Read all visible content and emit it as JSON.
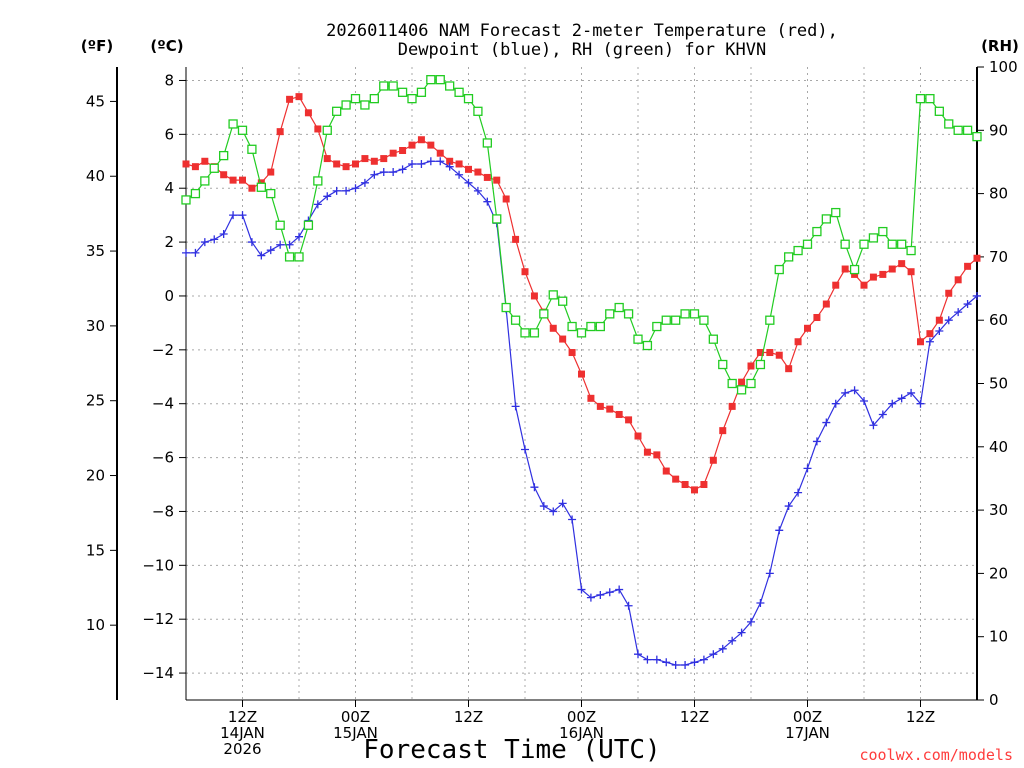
{
  "chart_data": {
    "type": "line",
    "title_lines": [
      "2026011406 NAM Forecast 2-meter Temperature (red),",
      "Dewpoint (blue), RH (green) for KHVN"
    ],
    "xlabel": "Forecast Time (UTC)",
    "credit": "coolwx.com/models",
    "units": {
      "fahrenheit": "(ºF)",
      "celsius": "(ºC)",
      "rh": "(RH)"
    },
    "x_unit": "forecast hours since 2026-01-14 06Z",
    "xlim": [
      0,
      84
    ],
    "celsius_axis": {
      "ylim": [
        -15,
        8.5
      ],
      "ticks": [
        8,
        6,
        4,
        2,
        0,
        -2,
        -4,
        -6,
        -8,
        -10,
        -12,
        -14
      ]
    },
    "fahrenheit_axis": {
      "ylim": [
        5,
        47.3
      ],
      "ticks": [
        45,
        40,
        35,
        30,
        25,
        20,
        15,
        10
      ]
    },
    "rh_axis": {
      "ylim": [
        0,
        100
      ],
      "ticks": [
        100,
        90,
        80,
        70,
        60,
        50,
        40,
        30,
        20,
        10,
        0
      ]
    },
    "x_ticks": [
      {
        "x": 6,
        "lines": [
          "12Z",
          "14JAN",
          "2026"
        ]
      },
      {
        "x": 18,
        "lines": [
          "00Z",
          "15JAN"
        ]
      },
      {
        "x": 30,
        "lines": [
          "12Z"
        ]
      },
      {
        "x": 42,
        "lines": [
          "00Z",
          "16JAN"
        ]
      },
      {
        "x": 54,
        "lines": [
          "12Z"
        ]
      },
      {
        "x": 66,
        "lines": [
          "00Z",
          "17JAN"
        ]
      },
      {
        "x": 78,
        "lines": [
          "12Z"
        ]
      }
    ],
    "x_grid": [
      0,
      6,
      12,
      18,
      24,
      30,
      36,
      42,
      48,
      54,
      60,
      66,
      72,
      78,
      84
    ],
    "series": [
      {
        "name": "Temperature",
        "axis": "celsius",
        "color": "#ee3030",
        "marker": "filled-square",
        "x": [
          0,
          1,
          2,
          3,
          4,
          5,
          6,
          7,
          8,
          9,
          10,
          11,
          12,
          13,
          14,
          15,
          16,
          17,
          18,
          19,
          20,
          21,
          22,
          23,
          24,
          25,
          26,
          27,
          28,
          29,
          30,
          31,
          32,
          33,
          34,
          35,
          36,
          37,
          38,
          39,
          40,
          41,
          42,
          43,
          44,
          45,
          46,
          47,
          48,
          49,
          50,
          51,
          52,
          53,
          54,
          55,
          56,
          57,
          58,
          59,
          60,
          61,
          62,
          63,
          64,
          65,
          66,
          67,
          68,
          69,
          70,
          71,
          72,
          73,
          74,
          75,
          76,
          77,
          78,
          79,
          80,
          81,
          82,
          83,
          84
        ],
        "values": [
          4.9,
          4.8,
          5.0,
          4.8,
          4.5,
          4.3,
          4.3,
          4.0,
          4.2,
          4.6,
          6.1,
          7.3,
          7.4,
          6.8,
          6.2,
          5.1,
          4.9,
          4.8,
          4.9,
          5.1,
          5.0,
          5.1,
          5.3,
          5.4,
          5.6,
          5.8,
          5.6,
          5.3,
          5.0,
          4.9,
          4.7,
          4.6,
          4.4,
          4.3,
          3.6,
          2.1,
          0.9,
          0.0,
          -0.6,
          -1.2,
          -1.6,
          -2.1,
          -2.9,
          -3.8,
          -4.1,
          -4.2,
          -4.4,
          -4.6,
          -5.2,
          -5.8,
          -5.9,
          -6.5,
          -6.8,
          -7.0,
          -7.2,
          -7.0,
          -6.1,
          -5.0,
          -4.1,
          -3.2,
          -2.6,
          -2.1,
          -2.1,
          -2.2,
          -2.7,
          -1.7,
          -1.2,
          -0.8,
          -0.3,
          0.4,
          1.0,
          0.8,
          0.4,
          0.7,
          0.8,
          1.0,
          1.2,
          0.9,
          -1.7,
          -1.4,
          -0.9,
          0.1,
          0.6,
          1.1,
          1.4
        ]
      },
      {
        "name": "Dewpoint",
        "axis": "celsius",
        "color": "#3030e0",
        "marker": "plus",
        "x": [
          0,
          1,
          2,
          3,
          4,
          5,
          6,
          7,
          8,
          9,
          10,
          11,
          12,
          13,
          14,
          15,
          16,
          17,
          18,
          19,
          20,
          21,
          22,
          23,
          24,
          25,
          26,
          27,
          28,
          29,
          30,
          31,
          32,
          33,
          34,
          35,
          36,
          37,
          38,
          39,
          40,
          41,
          42,
          43,
          44,
          45,
          46,
          47,
          48,
          49,
          50,
          51,
          52,
          53,
          54,
          55,
          56,
          57,
          58,
          59,
          60,
          61,
          62,
          63,
          64,
          65,
          66,
          67,
          68,
          69,
          70,
          71,
          72,
          73,
          74,
          75,
          76,
          77,
          78,
          79,
          80,
          81,
          82,
          83,
          84
        ],
        "values": [
          1.6,
          1.6,
          2.0,
          2.1,
          2.3,
          3.0,
          3.0,
          2.0,
          1.5,
          1.7,
          1.9,
          1.9,
          2.2,
          2.8,
          3.4,
          3.7,
          3.9,
          3.9,
          4.0,
          4.2,
          4.5,
          4.6,
          4.6,
          4.7,
          4.9,
          4.9,
          5.0,
          5.0,
          4.8,
          4.5,
          4.2,
          3.9,
          3.5,
          2.7,
          -0.5,
          -4.1,
          -5.7,
          -7.1,
          -7.8,
          -8.0,
          -7.7,
          -8.3,
          -10.9,
          -11.2,
          -11.1,
          -11.0,
          -10.9,
          -11.5,
          -13.3,
          -13.5,
          -13.5,
          -13.6,
          -13.7,
          -13.7,
          -13.6,
          -13.5,
          -13.3,
          -13.1,
          -12.8,
          -12.5,
          -12.1,
          -11.4,
          -10.3,
          -8.7,
          -7.8,
          -7.3,
          -6.4,
          -5.4,
          -4.7,
          -4.0,
          -3.6,
          -3.5,
          -3.9,
          -4.8,
          -4.4,
          -4.0,
          -3.8,
          -3.6,
          -4.0,
          -1.7,
          -1.3,
          -0.9,
          -0.6,
          -0.3,
          0.0
        ]
      },
      {
        "name": "Relative Humidity",
        "axis": "rh",
        "color": "#22cc22",
        "marker": "open-square",
        "x": [
          0,
          1,
          2,
          3,
          4,
          5,
          6,
          7,
          8,
          9,
          10,
          11,
          12,
          13,
          14,
          15,
          16,
          17,
          18,
          19,
          20,
          21,
          22,
          23,
          24,
          25,
          26,
          27,
          28,
          29,
          30,
          31,
          32,
          33,
          34,
          35,
          36,
          37,
          38,
          39,
          40,
          41,
          42,
          43,
          44,
          45,
          46,
          47,
          48,
          49,
          50,
          51,
          52,
          53,
          54,
          55,
          56,
          57,
          58,
          59,
          60,
          61,
          62,
          63,
          64,
          65,
          66,
          67,
          68,
          69,
          70,
          71,
          72,
          73,
          74,
          75,
          76,
          77,
          78,
          79,
          80,
          81,
          82,
          83,
          84
        ],
        "values": [
          79,
          80,
          82,
          84,
          86,
          91,
          90,
          87,
          81,
          80,
          75,
          70,
          70,
          75,
          82,
          90,
          93,
          94,
          95,
          94,
          95,
          97,
          97,
          96,
          95,
          96,
          98,
          98,
          97,
          96,
          95,
          93,
          88,
          76,
          62,
          60,
          58,
          58,
          61,
          64,
          63,
          59,
          58,
          59,
          59,
          61,
          62,
          61,
          57,
          56,
          59,
          60,
          60,
          61,
          61,
          60,
          57,
          53,
          50,
          49,
          50,
          53,
          60,
          68,
          70,
          71,
          72,
          74,
          76,
          77,
          72,
          68,
          72,
          73,
          74,
          72,
          72,
          71,
          95,
          95,
          93,
          91,
          90,
          90,
          89
        ]
      }
    ]
  }
}
